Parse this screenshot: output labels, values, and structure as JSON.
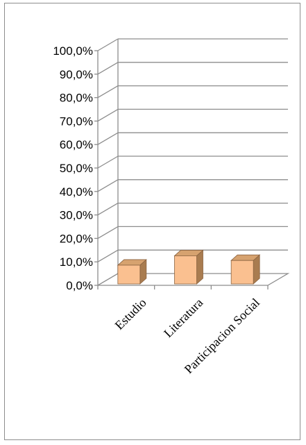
{
  "chart_data": {
    "type": "bar",
    "style": "3d-column",
    "categories": [
      "Estudio",
      "Literatura",
      "Participacion Social"
    ],
    "values": [
      8.0,
      12.0,
      10.0
    ],
    "ylim": [
      0,
      100
    ],
    "y_ticks": [
      "0,0%",
      "10,0%",
      "20,0%",
      "30,0%",
      "40,0%",
      "50,0%",
      "60,0%",
      "70,0%",
      "80,0%",
      "90,0%",
      "100,0%"
    ],
    "grid": true,
    "legend": "none",
    "colors": {
      "bar_front": "#fac090",
      "bar_side": "#a97c50",
      "bar_top": "#d6a26f",
      "bar_outline": "#8a6340",
      "gridline": "#8c8c8c"
    }
  }
}
